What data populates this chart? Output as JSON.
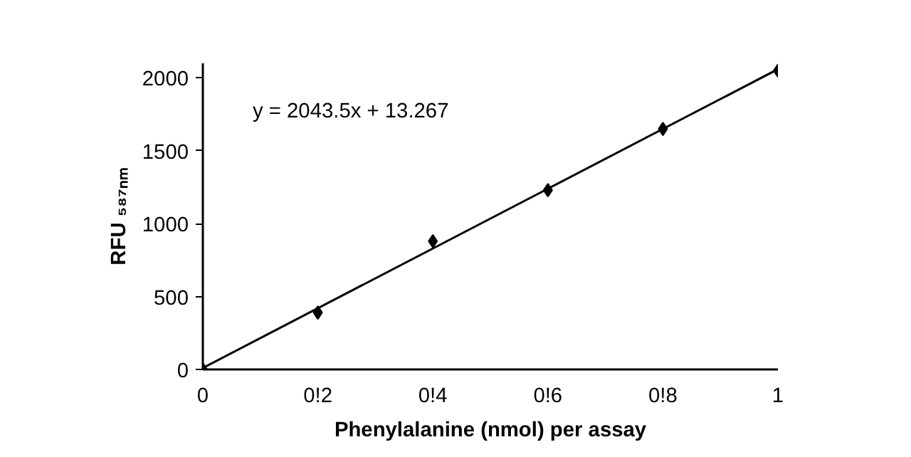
{
  "chart_data": {
    "type": "scatter",
    "xlabel": "Phenylalanine (nmol) per assay",
    "ylabel": "RFU ₅₈₇ₙₘ",
    "x": [
      0,
      0.2,
      0.4,
      0.6,
      0.8,
      1
    ],
    "series": [
      {
        "color": "#000000",
        "values": [
          0,
          390,
          880,
          1230,
          1650,
          2050
        ],
        "marker": "diamond"
      },
      {
        "type": "line",
        "color": "#000000",
        "x": [
          0,
          1
        ],
        "values": [
          10,
          2060
        ],
        "line_style": "solid"
      }
    ],
    "annotations": [
      "y = 2043.5x + 13.267"
    ],
    "xlim": [
      0,
      1
    ],
    "ylim": [
      0,
      2100
    ],
    "xticks": [
      0,
      {
        "value": 0.2,
        "label": "0!2"
      },
      {
        "value": 0.4,
        "label": "0!4"
      },
      {
        "value": 0.6,
        "label": "0!6"
      },
      {
        "value": 0.8,
        "label": "0!8"
      },
      1
    ],
    "yticks": [
      0,
      500,
      1000,
      1500,
      2000
    ],
    "grid": false
  }
}
